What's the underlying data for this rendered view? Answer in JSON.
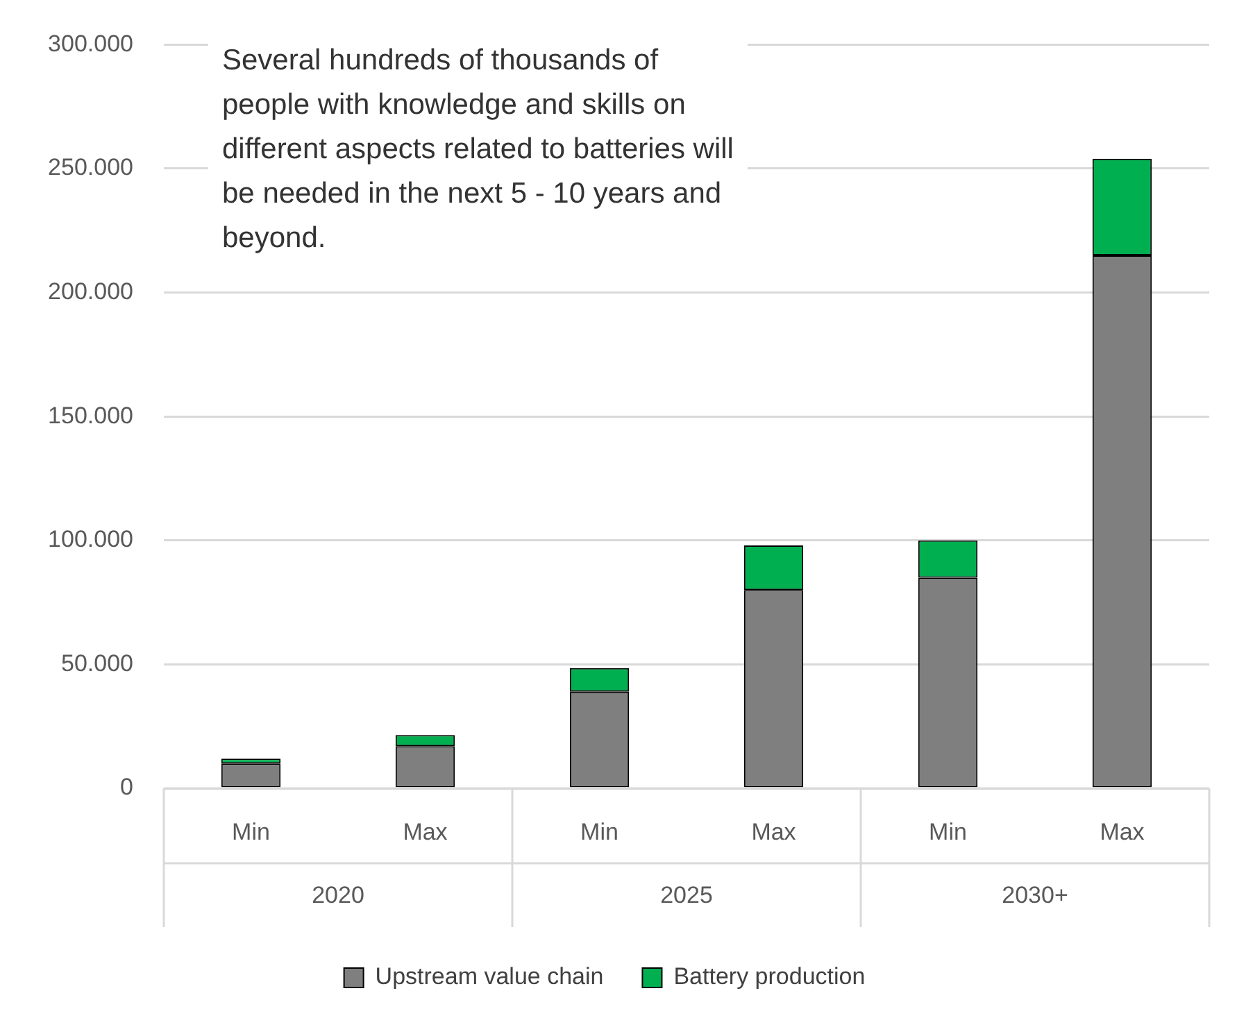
{
  "chart_data": {
    "type": "bar",
    "stacked": true,
    "categories": [
      "Min",
      "Max",
      "Min",
      "Max",
      "Min",
      "Max"
    ],
    "series": [
      {
        "name": "Upstream value chain",
        "color": "#7f7f7f",
        "values": [
          10000,
          17000,
          39000,
          80000,
          85000,
          215000
        ]
      },
      {
        "name": "Battery production",
        "color": "#00b050",
        "values": [
          2000,
          4500,
          9500,
          18000,
          15000,
          39000
        ]
      }
    ],
    "ylim": [
      0,
      300000
    ],
    "yticks": [
      0,
      {
        "value": 50000,
        "label": "50.000"
      },
      {
        "value": 100000,
        "label": "100.000"
      },
      {
        "value": 150000,
        "label": "150.000"
      },
      {
        "value": 200000,
        "label": "200.000"
      },
      {
        "value": 250000,
        "label": "250.000"
      },
      {
        "value": 300000,
        "label": "300.000"
      }
    ],
    "grid": "y",
    "legend": "bottom",
    "annotations": [
      "Several hundreds of thousands of people with knowledge and skills on different aspects related to batteries will be needed in the next 5 - 10 years and beyond.",
      "2020",
      "2025",
      "2030+"
    ]
  }
}
